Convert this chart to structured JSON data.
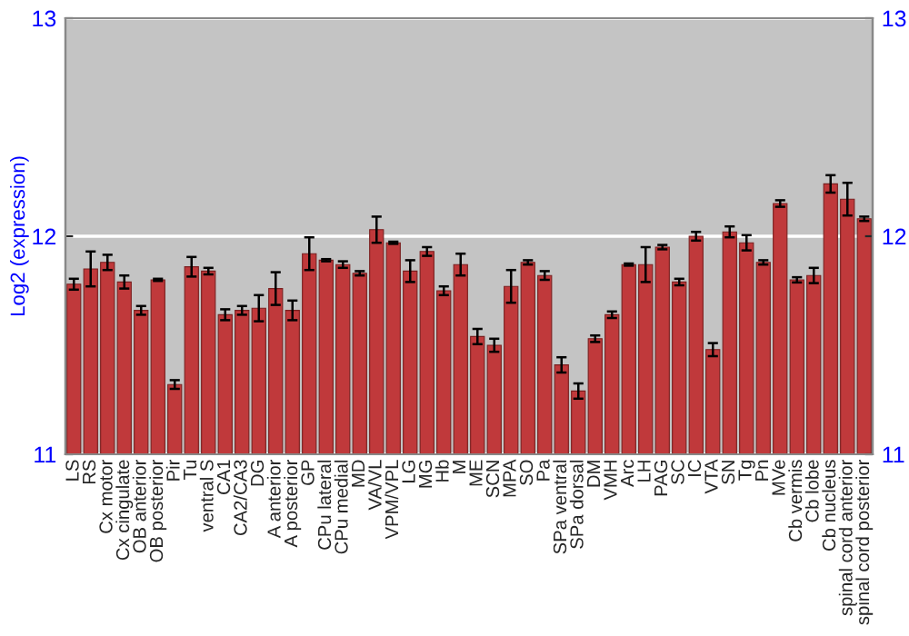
{
  "chart_data": {
    "type": "bar",
    "ylabel": "Log2 (expression)",
    "categories": [
      "LS",
      "RS",
      "Cx motor",
      "Cx cingulate",
      "OB anterior",
      "OB posterior",
      "Pir",
      "Tu",
      "ventral S",
      "CA1",
      "CA2/CA3",
      "DG",
      "A anterior",
      "A posterior",
      "GP",
      "CPu lateral",
      "CPu medial",
      "MD",
      "VA/VL",
      "VPM/VPL",
      "LG",
      "MG",
      "Hb",
      "M",
      "ME",
      "SCN",
      "MPA",
      "SO",
      "Pa",
      "SPa ventral",
      "SPa dorsal",
      "DM",
      "VMH",
      "Arc",
      "LH",
      "PAG",
      "SC",
      "IC",
      "VTA",
      "SN",
      "Tg",
      "Pn",
      "MVe",
      "Cb vermis",
      "Cb lobe",
      "Cb nucleus",
      "spinal cord anterior",
      "spinal cord posterior"
    ],
    "values": [
      11.78,
      11.85,
      11.88,
      11.79,
      11.66,
      11.8,
      11.32,
      11.86,
      11.84,
      11.64,
      11.66,
      11.67,
      11.76,
      11.66,
      11.92,
      11.89,
      11.87,
      11.83,
      12.03,
      11.97,
      11.84,
      11.93,
      11.75,
      11.87,
      11.54,
      11.5,
      11.77,
      11.88,
      11.82,
      11.41,
      11.29,
      11.53,
      11.64,
      11.87,
      11.87,
      11.95,
      11.79,
      12.0,
      11.48,
      12.02,
      11.97,
      11.88,
      12.15,
      11.8,
      11.82,
      12.24,
      12.17,
      12.08
    ],
    "errors": [
      0.025,
      0.08,
      0.035,
      0.03,
      0.02,
      0.005,
      0.02,
      0.045,
      0.015,
      0.025,
      0.02,
      0.06,
      0.075,
      0.045,
      0.075,
      0.005,
      0.015,
      0.01,
      0.06,
      0.005,
      0.05,
      0.02,
      0.02,
      0.05,
      0.035,
      0.03,
      0.075,
      0.01,
      0.02,
      0.035,
      0.035,
      0.015,
      0.015,
      0.005,
      0.08,
      0.01,
      0.015,
      0.02,
      0.03,
      0.025,
      0.035,
      0.01,
      0.015,
      0.012,
      0.035,
      0.04,
      0.075,
      0.01
    ],
    "color": "#c0393b",
    "ylim": [
      11,
      13
    ],
    "yticks": [
      11,
      12,
      13
    ],
    "y2lim": [
      11,
      13
    ],
    "y2ticks": [
      11,
      12,
      13
    ],
    "grid": "y"
  }
}
